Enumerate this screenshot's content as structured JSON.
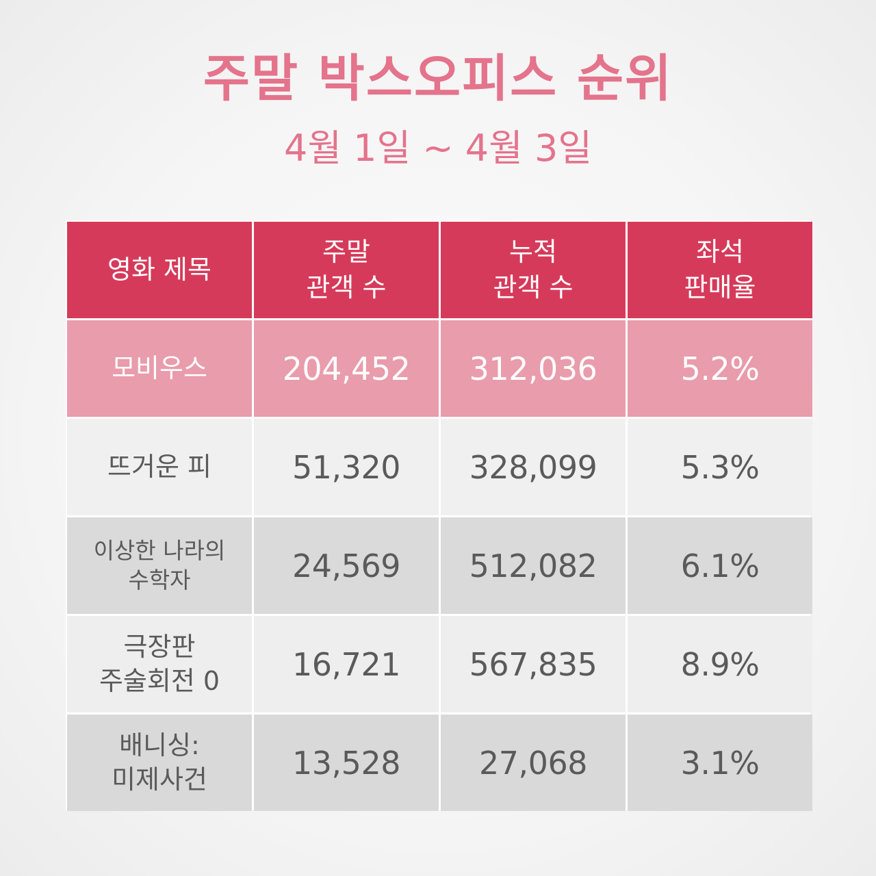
{
  "header": {
    "title": "주말 박스오피스 순위",
    "subtitle": "4월 1일 ~ 4월 3일"
  },
  "table": {
    "columns": [
      "영화 제목",
      "주말\n관객 수",
      "누적\n관객 수",
      "좌석\n판매율"
    ],
    "rows": [
      {
        "title": "모비우스",
        "weekend": "204,452",
        "cumulative": "312,036",
        "seat_rate": "5.2%"
      },
      {
        "title": "뜨거운 피",
        "weekend": "51,320",
        "cumulative": "328,099",
        "seat_rate": "5.3%"
      },
      {
        "title": "이상한 나라의\n수학자",
        "weekend": "24,569",
        "cumulative": "512,082",
        "seat_rate": "6.1%"
      },
      {
        "title": "극장판\n주술회전 0",
        "weekend": "16,721",
        "cumulative": "567,835",
        "seat_rate": "8.9%"
      },
      {
        "title": "배니싱:\n미제사건",
        "weekend": "13,528",
        "cumulative": "27,068",
        "seat_rate": "3.1%"
      }
    ]
  },
  "colors": {
    "accent": "#e4738c",
    "header_bg": "#d63a5a",
    "highlight_row": "#e99cab"
  }
}
